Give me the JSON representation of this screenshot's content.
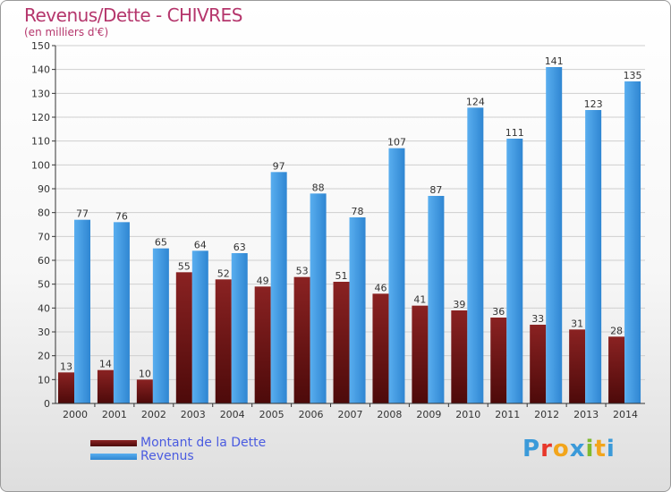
{
  "header": {
    "title": "Revenus/Dette - CHIVRES",
    "subtitle": "(en milliers d'€)"
  },
  "logo": {
    "text": "Proxiti",
    "colors": [
      "#3b9ad9",
      "#e8372a",
      "#f2a51c",
      "#3b9ad9",
      "#7fba2f",
      "#f2a51c",
      "#3b9ad9"
    ]
  },
  "colors": {
    "debt": "#7a1a1a",
    "revenue": "#3b8fd9",
    "axis": "#333333",
    "grid": "#cfcfcf"
  },
  "chart_data": {
    "type": "bar",
    "categories": [
      "2000",
      "2001",
      "2002",
      "2003",
      "2004",
      "2005",
      "2006",
      "2007",
      "2008",
      "2009",
      "2010",
      "2011",
      "2012",
      "2013",
      "2014"
    ],
    "series": [
      {
        "name": "Montant de la Dette",
        "values": [
          13,
          14,
          10,
          55,
          52,
          49,
          53,
          51,
          46,
          41,
          39,
          36,
          33,
          31,
          28
        ]
      },
      {
        "name": "Revenus",
        "values": [
          77,
          76,
          65,
          64,
          63,
          97,
          88,
          78,
          107,
          87,
          124,
          111,
          141,
          123,
          135
        ]
      }
    ],
    "yticks": [
      0,
      10,
      20,
      30,
      40,
      50,
      60,
      70,
      80,
      90,
      100,
      110,
      120,
      130,
      140,
      150
    ],
    "ylim": [
      0,
      150
    ],
    "grid": true,
    "legend": "bottom-left"
  }
}
